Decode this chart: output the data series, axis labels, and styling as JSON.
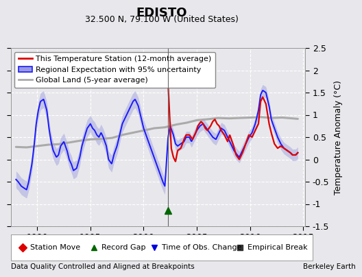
{
  "title": "EDISTO",
  "subtitle": "32.500 N, 79.100 W (United States)",
  "ylabel": "Temperature Anomaly (°C)",
  "footer_left": "Data Quality Controlled and Aligned at Breakpoints",
  "footer_right": "Berkeley Earth",
  "xlim": [
    1987.5,
    2015.2
  ],
  "ylim": [
    -1.5,
    2.5
  ],
  "yticks": [
    -1.5,
    -1.0,
    -0.5,
    0.0,
    0.5,
    1.0,
    1.5,
    2.0,
    2.5
  ],
  "ytick_labels": [
    "-1.5",
    "-1",
    "-0.5",
    "0",
    "0.5",
    "1",
    "1.5",
    "2",
    "2.5"
  ],
  "xticks": [
    1990,
    1995,
    2000,
    2005,
    2010,
    2015
  ],
  "background_color": "#e8e8ec",
  "plot_background": "#e8e8ec",
  "grid_color": "#ffffff",
  "vertical_line_x": 2002.3,
  "marker_green_triangle_x": 2002.3,
  "marker_green_triangle_y": -1.15,
  "title_fontsize": 13,
  "subtitle_fontsize": 9,
  "legend_fontsize": 8,
  "axis_fontsize": 9,
  "footer_fontsize": 7.5,
  "blue_line_color": "#1a1aff",
  "blue_band_color": "#9999dd",
  "red_line_color": "#dd0000",
  "gray_line_color": "#aaaaaa",
  "blue_key_x": [
    1988.0,
    1988.2,
    1988.5,
    1988.8,
    1989.0,
    1989.2,
    1989.5,
    1989.7,
    1989.9,
    1990.1,
    1990.3,
    1990.6,
    1990.9,
    1991.1,
    1991.3,
    1991.5,
    1991.8,
    1992.0,
    1992.2,
    1992.5,
    1992.8,
    1993.0,
    1993.2,
    1993.4,
    1993.7,
    1994.0,
    1994.2,
    1994.5,
    1994.7,
    1995.0,
    1995.2,
    1995.4,
    1995.6,
    1995.8,
    1996.0,
    1996.2,
    1996.5,
    1996.7,
    1997.0,
    1997.2,
    1997.5,
    1997.8,
    1998.0,
    1998.2,
    1998.5,
    1998.8,
    1999.0,
    1999.2,
    1999.5,
    1999.8,
    2000.0,
    2000.3,
    2000.6,
    2000.9,
    2001.2,
    2001.5,
    2001.8,
    2002.0,
    2002.3,
    2002.5,
    2002.8,
    2003.0,
    2003.2,
    2003.5,
    2003.8,
    2004.0,
    2004.3,
    2004.5,
    2004.8,
    2005.0,
    2005.3,
    2005.6,
    2005.9,
    2006.2,
    2006.5,
    2006.8,
    2007.0,
    2007.3,
    2007.6,
    2007.9,
    2008.2,
    2008.5,
    2008.8,
    2009.0,
    2009.3,
    2009.6,
    2009.9,
    2010.2,
    2010.5,
    2010.8,
    2011.0,
    2011.2,
    2011.5,
    2011.8,
    2012.0,
    2012.3,
    2012.6,
    2012.9,
    2013.2,
    2013.5,
    2013.8,
    2014.0,
    2014.3,
    2014.5
  ],
  "blue_key_y": [
    -0.45,
    -0.5,
    -0.6,
    -0.65,
    -0.68,
    -0.5,
    -0.1,
    0.3,
    0.8,
    1.1,
    1.3,
    1.35,
    1.1,
    0.7,
    0.4,
    0.2,
    0.05,
    0.1,
    0.3,
    0.4,
    0.2,
    0.0,
    -0.1,
    -0.25,
    -0.2,
    0.05,
    0.3,
    0.55,
    0.7,
    0.8,
    0.7,
    0.65,
    0.55,
    0.5,
    0.6,
    0.5,
    0.3,
    0.0,
    -0.1,
    0.1,
    0.3,
    0.6,
    0.8,
    0.9,
    1.05,
    1.2,
    1.3,
    1.35,
    1.2,
    0.9,
    0.7,
    0.5,
    0.3,
    0.1,
    -0.1,
    -0.3,
    -0.5,
    -0.6,
    0.5,
    0.75,
    0.55,
    0.35,
    0.3,
    0.35,
    0.4,
    0.5,
    0.5,
    0.4,
    0.55,
    0.65,
    0.75,
    0.8,
    0.7,
    0.6,
    0.5,
    0.45,
    0.55,
    0.7,
    0.65,
    0.5,
    0.35,
    0.2,
    0.1,
    0.05,
    0.2,
    0.35,
    0.5,
    0.6,
    0.8,
    1.1,
    1.45,
    1.55,
    1.5,
    1.2,
    0.9,
    0.7,
    0.5,
    0.35,
    0.25,
    0.2,
    0.15,
    0.1,
    0.1,
    0.15
  ],
  "red_key_x": [
    2002.3,
    2002.4,
    2002.6,
    2002.8,
    2003.0,
    2003.2,
    2003.5,
    2003.8,
    2004.0,
    2004.3,
    2004.6,
    2004.9,
    2005.1,
    2005.4,
    2005.6,
    2005.8,
    2006.0,
    2006.3,
    2006.5,
    2006.7,
    2006.9,
    2007.1,
    2007.3,
    2007.6,
    2007.9,
    2008.1,
    2008.4,
    2008.7,
    2009.0,
    2009.3,
    2009.6,
    2009.9,
    2010.2,
    2010.5,
    2010.8,
    2011.0,
    2011.2,
    2011.5,
    2011.8,
    2012.0,
    2012.3,
    2012.6,
    2012.9,
    2013.2,
    2013.5,
    2013.8,
    2014.0,
    2014.3,
    2014.5
  ],
  "red_key_y": [
    1.7,
    1.2,
    0.25,
    0.05,
    -0.05,
    0.2,
    0.25,
    0.45,
    0.55,
    0.55,
    0.45,
    0.6,
    0.75,
    0.85,
    0.8,
    0.7,
    0.65,
    0.75,
    0.85,
    0.9,
    0.8,
    0.75,
    0.65,
    0.55,
    0.4,
    0.55,
    0.35,
    0.1,
    0.0,
    0.15,
    0.35,
    0.55,
    0.5,
    0.65,
    0.8,
    1.3,
    1.4,
    1.25,
    0.8,
    0.6,
    0.35,
    0.25,
    0.3,
    0.25,
    0.2,
    0.15,
    0.1,
    0.1,
    0.15
  ],
  "gray_key_x": [
    1988.0,
    1989.0,
    1990.0,
    1991.0,
    1992.0,
    1993.0,
    1994.0,
    1995.0,
    1996.0,
    1997.0,
    1998.0,
    1999.0,
    2000.0,
    2001.0,
    2002.0,
    2003.0,
    2004.0,
    2005.0,
    2006.0,
    2007.0,
    2008.0,
    2009.0,
    2010.0,
    2011.0,
    2012.0,
    2013.0,
    2014.0,
    2014.5
  ],
  "gray_key_y": [
    0.28,
    0.27,
    0.3,
    0.33,
    0.34,
    0.38,
    0.42,
    0.45,
    0.46,
    0.48,
    0.55,
    0.6,
    0.65,
    0.7,
    0.72,
    0.78,
    0.82,
    0.88,
    0.9,
    0.93,
    0.92,
    0.93,
    0.94,
    0.95,
    0.93,
    0.94,
    0.92,
    0.91
  ],
  "uncertainty_base": 0.13,
  "uncertainty_extra_early": 0.06
}
